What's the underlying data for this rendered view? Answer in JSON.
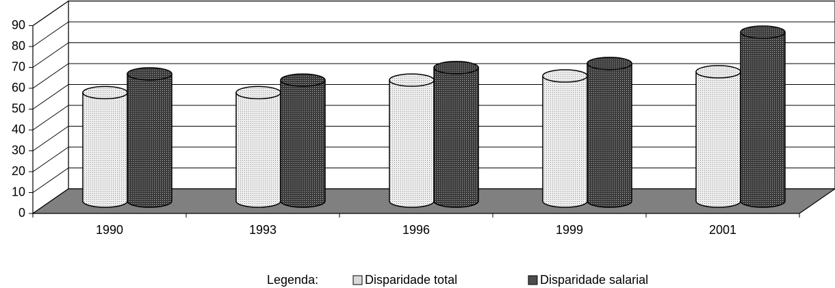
{
  "chart_data": {
    "type": "bar3d",
    "categories": [
      "1990",
      "1993",
      "1996",
      "1999",
      "2001"
    ],
    "series": [
      {
        "name": "Disparidade total",
        "color": "#d9d9d9",
        "values": [
          52,
          52,
          58,
          60,
          62
        ]
      },
      {
        "name": "Disparidade salarial",
        "color": "#4d4d4d",
        "values": [
          61,
          58,
          64,
          66,
          81
        ]
      }
    ],
    "ylim": [
      0,
      90
    ],
    "yticks": [
      0,
      10,
      20,
      30,
      40,
      50,
      60,
      70,
      80,
      90
    ],
    "grid": true,
    "legend_title": "Legenda:",
    "legend": "bottom"
  }
}
